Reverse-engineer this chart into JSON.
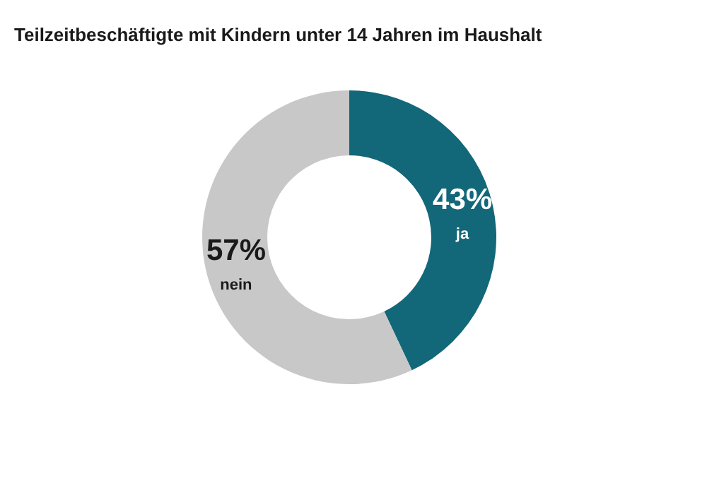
{
  "chart_data": {
    "type": "donut",
    "title": "Teilzeitbeschäftigte mit Kindern unter 14 Jahren im Haushalt",
    "categories": [
      "ja",
      "nein"
    ],
    "values": [
      43,
      57
    ],
    "colors": [
      "#126779",
      "#c8c8c8"
    ],
    "value_labels": [
      "43%",
      "57%"
    ],
    "legend": false
  }
}
